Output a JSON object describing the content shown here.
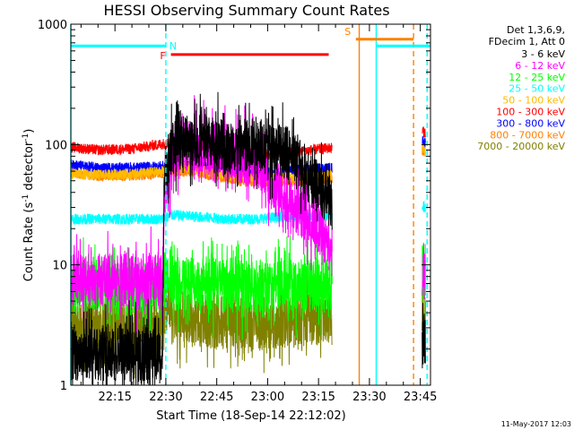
{
  "chart_data": {
    "type": "line",
    "title": "HESSI Observing Summary Count Rates",
    "xlabel": "Start Time (18-Sep-14 22:12:02)",
    "ylabel_main": "Count Rate (s",
    "ylabel_sup1": "-1",
    "ylabel_mid": " detector",
    "ylabel_sup2": "-1",
    "ylabel_end": ")",
    "xlim": [
      722,
      828
    ],
    "ylim": [
      1,
      1000
    ],
    "yscale": "log",
    "x_ticks": [
      {
        "t": 735,
        "label": "22:15"
      },
      {
        "t": 750,
        "label": "22:30"
      },
      {
        "t": 765,
        "label": "22:45"
      },
      {
        "t": 780,
        "label": "23:00"
      },
      {
        "t": 795,
        "label": "23:15"
      },
      {
        "t": 810,
        "label": "23:30"
      },
      {
        "t": 825,
        "label": "23:45"
      }
    ],
    "y_ticks": [
      {
        "v": 1,
        "label": "1"
      },
      {
        "v": 10,
        "label": "10"
      },
      {
        "v": 100,
        "label": "100"
      },
      {
        "v": 1000,
        "label": "1000"
      }
    ],
    "legend_header": [
      "Det 1,3,6,9,",
      "FDecim 1, Att 0"
    ],
    "legend_placement": "right",
    "timestamp": "11-May-2017 12:03",
    "flags": [
      {
        "label": "N",
        "color": "#00ffff",
        "start": 722,
        "end": 750,
        "level": 660
      },
      {
        "label": "F",
        "color": "#ff0000",
        "start": 751.5,
        "end": 798,
        "level": 560
      },
      {
        "label": "S",
        "color": "#ff8000",
        "start": 806,
        "end": 823,
        "level": 750
      },
      {
        "label": "",
        "color": "#00ffff",
        "start": 812,
        "end": 828,
        "level": 660
      }
    ],
    "markers": [
      {
        "t": 722,
        "color": "#00ffff",
        "style": "solid"
      },
      {
        "t": 750,
        "color": "#00ffff",
        "style": "dashed"
      },
      {
        "t": 807,
        "color": "#ff8000",
        "style": "solid"
      },
      {
        "t": 812,
        "color": "#00ffff",
        "style": "solid"
      },
      {
        "t": 823,
        "color": "#ff8000",
        "style": "dashed"
      },
      {
        "t": 827,
        "color": "#00ffff",
        "style": "dashed"
      }
    ],
    "gaps": [
      [
        799,
        825.5
      ]
    ],
    "series": [
      {
        "name": "3 - 6 keV",
        "color": "#000000",
        "points": [
          [
            722,
            1.8
          ],
          [
            749,
            1.8
          ],
          [
            749.5,
            60
          ],
          [
            752,
            95
          ],
          [
            755,
            105
          ],
          [
            758,
            110
          ],
          [
            762,
            105
          ],
          [
            766,
            100
          ],
          [
            770,
            95
          ],
          [
            774,
            100
          ],
          [
            778,
            105
          ],
          [
            782,
            95
          ],
          [
            786,
            85
          ],
          [
            789,
            75
          ],
          [
            792,
            55
          ],
          [
            795,
            42
          ],
          [
            798,
            35
          ],
          [
            799,
            30
          ],
          [
            825.5,
            2
          ],
          [
            826.5,
            2.5
          ]
        ]
      },
      {
        "name": "6 - 12 keV",
        "color": "#ff00ff",
        "points": [
          [
            722,
            7.5
          ],
          [
            749,
            7.5
          ],
          [
            749.5,
            35
          ],
          [
            752,
            90
          ],
          [
            755,
            100
          ],
          [
            758,
            90
          ],
          [
            762,
            90
          ],
          [
            766,
            85
          ],
          [
            770,
            80
          ],
          [
            774,
            75
          ],
          [
            778,
            65
          ],
          [
            782,
            48
          ],
          [
            786,
            35
          ],
          [
            789,
            28
          ],
          [
            792,
            25
          ],
          [
            795,
            20
          ],
          [
            798,
            15
          ],
          [
            799,
            13
          ],
          [
            825.5,
            7
          ],
          [
            826.5,
            8
          ]
        ]
      },
      {
        "name": "12 - 25 keV",
        "color": "#00ff00",
        "points": [
          [
            722,
            6.5
          ],
          [
            749,
            6.5
          ],
          [
            750,
            7.2
          ],
          [
            756,
            7.0
          ],
          [
            764,
            6.8
          ],
          [
            772,
            6.6
          ],
          [
            780,
            6.6
          ],
          [
            790,
            6.7
          ],
          [
            799,
            6.8
          ],
          [
            825.5,
            10
          ],
          [
            826.5,
            9
          ]
        ]
      },
      {
        "name": "25 - 50 keV",
        "color": "#00ffff",
        "points": [
          [
            722,
            24
          ],
          [
            749,
            24
          ],
          [
            752,
            26
          ],
          [
            760,
            25
          ],
          [
            768,
            24
          ],
          [
            776,
            24
          ],
          [
            784,
            25
          ],
          [
            792,
            25
          ],
          [
            799,
            26
          ],
          [
            825.5,
            31
          ],
          [
            826.5,
            30
          ]
        ]
      },
      {
        "name": "50 - 100 keV",
        "color": "#ffbb00",
        "points": [
          [
            722,
            57
          ],
          [
            730,
            56
          ],
          [
            740,
            57
          ],
          [
            750,
            60
          ],
          [
            756,
            65
          ],
          [
            764,
            58
          ],
          [
            772,
            54
          ],
          [
            780,
            52
          ],
          [
            790,
            54
          ],
          [
            799,
            56
          ],
          [
            825.5,
            95
          ],
          [
            826.5,
            90
          ]
        ]
      },
      {
        "name": "100 - 300 keV",
        "color": "#ff0000",
        "points": [
          [
            722,
            95
          ],
          [
            730,
            90
          ],
          [
            740,
            92
          ],
          [
            750,
            102
          ],
          [
            756,
            105
          ],
          [
            764,
            92
          ],
          [
            772,
            85
          ],
          [
            780,
            82
          ],
          [
            790,
            88
          ],
          [
            799,
            94
          ],
          [
            825.5,
            130
          ],
          [
            826.5,
            125
          ]
        ]
      },
      {
        "name": "300 - 800 keV",
        "color": "#0000ff",
        "points": [
          [
            722,
            68
          ],
          [
            730,
            64
          ],
          [
            740,
            64
          ],
          [
            750,
            66
          ],
          [
            756,
            68
          ],
          [
            764,
            64
          ],
          [
            772,
            60
          ],
          [
            780,
            58
          ],
          [
            790,
            62
          ],
          [
            799,
            64
          ],
          [
            825.5,
            108
          ],
          [
            826.5,
            104
          ]
        ]
      },
      {
        "name": "800 - 7000 keV",
        "color": "#ff8000",
        "points": [
          [
            722,
            58
          ],
          [
            730,
            55
          ],
          [
            740,
            55
          ],
          [
            750,
            58
          ],
          [
            756,
            60
          ],
          [
            764,
            55
          ],
          [
            772,
            50
          ],
          [
            780,
            48
          ],
          [
            790,
            50
          ],
          [
            799,
            52
          ],
          [
            825.5,
            90
          ],
          [
            826.5,
            86
          ]
        ]
      },
      {
        "name": "7000 - 20000 keV",
        "color": "#808000",
        "points": [
          [
            722,
            3.2
          ],
          [
            749,
            3.2
          ],
          [
            750,
            4.2
          ],
          [
            756,
            3.6
          ],
          [
            764,
            3.3
          ],
          [
            772,
            3.3
          ],
          [
            780,
            3.3
          ],
          [
            790,
            3.4
          ],
          [
            799,
            3.6
          ],
          [
            825.5,
            3.6
          ],
          [
            826.5,
            3.5
          ]
        ]
      }
    ]
  }
}
